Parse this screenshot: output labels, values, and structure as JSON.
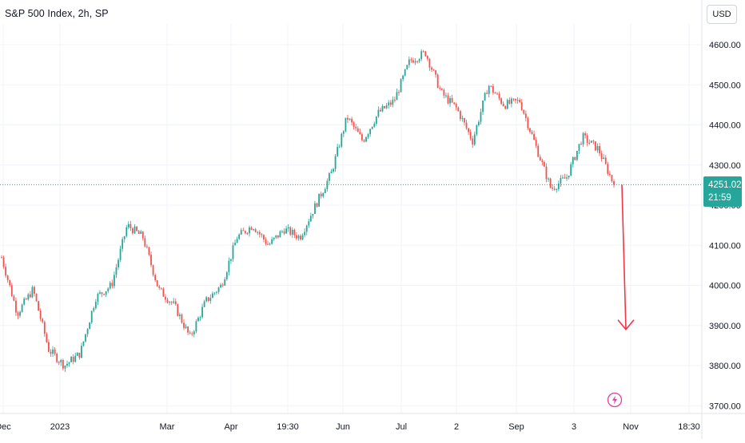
{
  "header": {
    "title": "S&P 500 Index, 2h, SP",
    "currency": "USD"
  },
  "price_tag": {
    "price": "4251.02",
    "countdown": "21:59"
  },
  "chart_data": {
    "type": "candlestick",
    "ylim": [
      3690,
      4660
    ],
    "y_ticks": [
      "4600.00",
      "4500.00",
      "4400.00",
      "4300.00",
      "4200.00",
      "4100.00",
      "4000.00",
      "3900.00",
      "3800.00",
      "3700.00"
    ],
    "y_tick_values": [
      4600,
      4500,
      4400,
      4300,
      4200,
      4100,
      4000,
      3900,
      3800,
      3700
    ],
    "x_ticks": [
      "Dec",
      "2023",
      "Mar",
      "Apr",
      "19:30",
      "Jun",
      "Jul",
      "2",
      "Sep",
      "3",
      "Nov",
      "18:30"
    ],
    "last_price": 4251.02,
    "close_path": [
      {
        "label": "Dec",
        "value": 4070
      },
      {
        "label": "",
        "value": 3930
      },
      {
        "label": "",
        "value": 3990
      },
      {
        "label": "",
        "value": 3840
      },
      {
        "label": "2023",
        "value": 3800
      },
      {
        "label": "",
        "value": 3830
      },
      {
        "label": "",
        "value": 3970
      },
      {
        "label": "",
        "value": 4000
      },
      {
        "label": "",
        "value": 4150
      },
      {
        "label": "",
        "value": 4120
      },
      {
        "label": "",
        "value": 3990
      },
      {
        "label": "Mar",
        "value": 3950
      },
      {
        "label": "",
        "value": 3870
      },
      {
        "label": "",
        "value": 3960
      },
      {
        "label": "",
        "value": 4000
      },
      {
        "label": "Apr",
        "value": 4120
      },
      {
        "label": "",
        "value": 4150
      },
      {
        "label": "19:30",
        "value": 4100
      },
      {
        "label": "",
        "value": 4140
      },
      {
        "label": "",
        "value": 4120
      },
      {
        "label": "",
        "value": 4200
      },
      {
        "label": "Jun",
        "value": 4280
      },
      {
        "label": "",
        "value": 4420
      },
      {
        "label": "",
        "value": 4360
      },
      {
        "label": "",
        "value": 4430
      },
      {
        "label": "Jul",
        "value": 4460
      },
      {
        "label": "",
        "value": 4560
      },
      {
        "label": "",
        "value": 4580
      },
      {
        "label": "2",
        "value": 4480
      },
      {
        "label": "",
        "value": 4440
      },
      {
        "label": "",
        "value": 4360
      },
      {
        "label": "Sep",
        "value": 4500
      },
      {
        "label": "",
        "value": 4450
      },
      {
        "label": "",
        "value": 4460
      },
      {
        "label": "",
        "value": 4350
      },
      {
        "label": "",
        "value": 4240
      },
      {
        "label": "3",
        "value": 4270
      },
      {
        "label": "",
        "value": 4370
      },
      {
        "label": "",
        "value": 4340
      },
      {
        "label": "",
        "value": 4251
      }
    ],
    "projection": {
      "from": 4251,
      "to": 3890
    },
    "colors": {
      "up": "#26a69a",
      "down": "#ef5350",
      "grid": "#f0f3fa",
      "price_line": "#26a69a",
      "arrow": "#f23645"
    }
  },
  "icons": {
    "bolt": "lightning-bolt-icon"
  }
}
